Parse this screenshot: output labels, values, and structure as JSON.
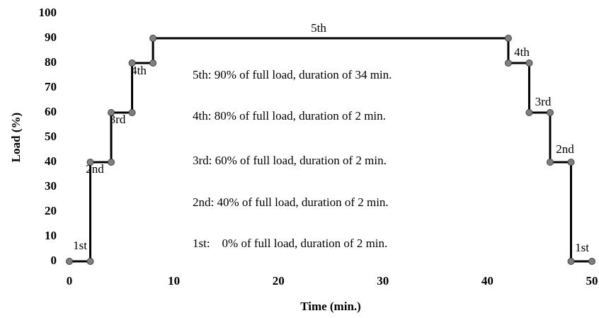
{
  "chart_data": {
    "type": "line",
    "xlabel": "Time (min.)",
    "ylabel": "Load (%)",
    "x": [
      0,
      2,
      2,
      4,
      4,
      6,
      6,
      8,
      8,
      42,
      42,
      44,
      44,
      46,
      46,
      48,
      48,
      50
    ],
    "values": [
      0,
      0,
      40,
      40,
      60,
      60,
      80,
      80,
      90,
      90,
      80,
      80,
      60,
      60,
      40,
      40,
      0,
      0
    ],
    "color": "#000000",
    "marker_color": "#7f7f7f",
    "xlim": [
      0,
      50
    ],
    "xticks": [
      0,
      10,
      20,
      30,
      40,
      50
    ],
    "ylim": [
      0,
      100
    ],
    "yticks": [
      0,
      10,
      20,
      30,
      40,
      50,
      60,
      70,
      80,
      90,
      100
    ],
    "grid": false,
    "step_labels": [
      "1st",
      "2nd",
      "3rd",
      "4th",
      "5th",
      "4th",
      "3rd",
      "2nd",
      "1st"
    ],
    "notes": [
      "5th: 90% of full load, duration of 34 min.",
      "4th: 80% of full load, duration of 2 min.",
      "3rd: 60% of full load, duration of 2 min.",
      "2nd: 40% of full load, duration of 2 min.",
      "1st:    0% of full load, duration of 2 min."
    ]
  }
}
